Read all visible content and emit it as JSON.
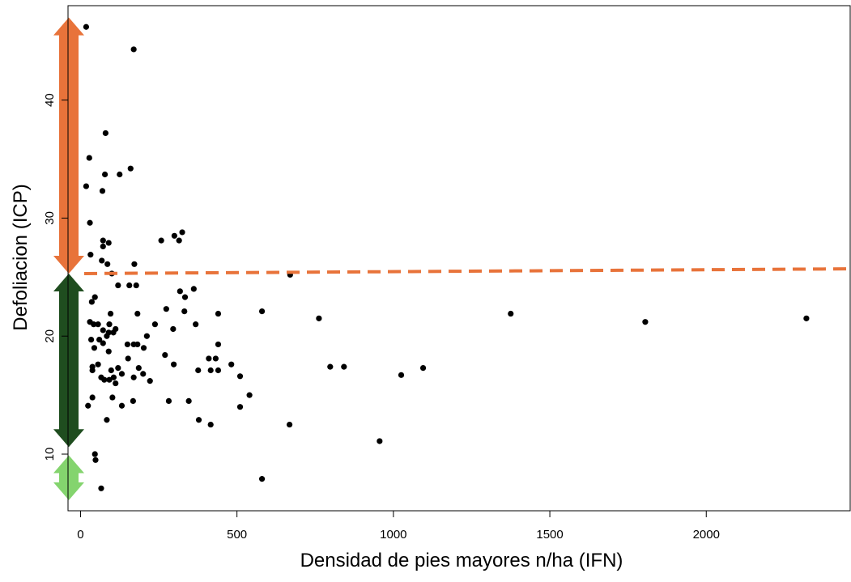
{
  "chart_data": {
    "type": "scatter",
    "xlabel": "Densidad de pies mayores n/ha (IFN)",
    "ylabel": "Defoliacion (ICP)",
    "xlim": [
      -40,
      2460
    ],
    "ylim": [
      5.2,
      48.0
    ],
    "x_ticks": [
      0,
      500,
      1000,
      1500,
      2000
    ],
    "y_ticks": [
      10,
      20,
      30,
      40
    ],
    "point_color": "#000000",
    "trend_line": {
      "style": "dashed",
      "color": "#e8733a",
      "x": [
        -40,
        2460
      ],
      "y": [
        25.3,
        25.7
      ]
    },
    "range_arrows": [
      {
        "from": 25.3,
        "to": 47.0,
        "color": "#e8733a"
      },
      {
        "from": 10.6,
        "to": 25.3,
        "color": "#1f4d1f"
      },
      {
        "from": 6.1,
        "to": 9.9,
        "color": "#84d46e"
      }
    ],
    "points": [
      [
        18,
        46.2
      ],
      [
        170,
        44.3
      ],
      [
        80,
        37.2
      ],
      [
        28,
        35.1
      ],
      [
        160,
        34.2
      ],
      [
        78,
        33.7
      ],
      [
        125,
        33.7
      ],
      [
        18,
        32.7
      ],
      [
        70,
        32.3
      ],
      [
        30,
        29.6
      ],
      [
        325,
        28.8
      ],
      [
        300,
        28.5
      ],
      [
        315,
        28.1
      ],
      [
        258,
        28.1
      ],
      [
        72,
        28.1
      ],
      [
        90,
        27.9
      ],
      [
        72,
        27.6
      ],
      [
        32,
        26.9
      ],
      [
        68,
        26.4
      ],
      [
        172,
        26.1
      ],
      [
        86,
        26.1
      ],
      [
        100,
        25.3
      ],
      [
        670,
        25.2
      ],
      [
        120,
        24.3
      ],
      [
        156,
        24.3
      ],
      [
        178,
        24.3
      ],
      [
        362,
        24.0
      ],
      [
        318,
        23.8
      ],
      [
        334,
        23.3
      ],
      [
        46,
        23.3
      ],
      [
        36,
        22.9
      ],
      [
        274,
        22.3
      ],
      [
        580,
        22.1
      ],
      [
        332,
        22.1
      ],
      [
        440,
        21.9
      ],
      [
        182,
        21.9
      ],
      [
        96,
        21.9
      ],
      [
        1375,
        21.9
      ],
      [
        762,
        21.5
      ],
      [
        2320,
        21.5
      ],
      [
        1805,
        21.2
      ],
      [
        30,
        21.2
      ],
      [
        42,
        21.0
      ],
      [
        56,
        21.0
      ],
      [
        92,
        21.0
      ],
      [
        238,
        21.0
      ],
      [
        368,
        21.0
      ],
      [
        112,
        20.6
      ],
      [
        296,
        20.6
      ],
      [
        72,
        20.5
      ],
      [
        90,
        20.3
      ],
      [
        105,
        20.3
      ],
      [
        84,
        20.0
      ],
      [
        212,
        20.0
      ],
      [
        34,
        19.7
      ],
      [
        60,
        19.7
      ],
      [
        72,
        19.4
      ],
      [
        150,
        19.3
      ],
      [
        170,
        19.3
      ],
      [
        182,
        19.3
      ],
      [
        440,
        19.3
      ],
      [
        44,
        19.0
      ],
      [
        202,
        19.0
      ],
      [
        90,
        18.7
      ],
      [
        270,
        18.4
      ],
      [
        152,
        18.1
      ],
      [
        410,
        18.1
      ],
      [
        432,
        18.1
      ],
      [
        56,
        17.6
      ],
      [
        298,
        17.6
      ],
      [
        482,
        17.6
      ],
      [
        38,
        17.4
      ],
      [
        120,
        17.3
      ],
      [
        186,
        17.3
      ],
      [
        798,
        17.4
      ],
      [
        842,
        17.4
      ],
      [
        1095,
        17.3
      ],
      [
        38,
        17.1
      ],
      [
        98,
        17.1
      ],
      [
        416,
        17.1
      ],
      [
        440,
        17.1
      ],
      [
        376,
        17.1
      ],
      [
        132,
        16.8
      ],
      [
        200,
        16.8
      ],
      [
        66,
        16.5
      ],
      [
        106,
        16.5
      ],
      [
        170,
        16.5
      ],
      [
        510,
        16.6
      ],
      [
        1025,
        16.7
      ],
      [
        76,
        16.3
      ],
      [
        92,
        16.3
      ],
      [
        112,
        16.0
      ],
      [
        222,
        16.2
      ],
      [
        540,
        15.0
      ],
      [
        102,
        14.8
      ],
      [
        38,
        14.8
      ],
      [
        168,
        14.5
      ],
      [
        282,
        14.5
      ],
      [
        346,
        14.5
      ],
      [
        132,
        14.1
      ],
      [
        24,
        14.1
      ],
      [
        510,
        14.0
      ],
      [
        84,
        12.9
      ],
      [
        378,
        12.9
      ],
      [
        416,
        12.5
      ],
      [
        668,
        12.5
      ],
      [
        956,
        11.1
      ],
      [
        46,
        10.0
      ],
      [
        48,
        9.5
      ],
      [
        66,
        7.1
      ],
      [
        580,
        7.9
      ]
    ]
  }
}
